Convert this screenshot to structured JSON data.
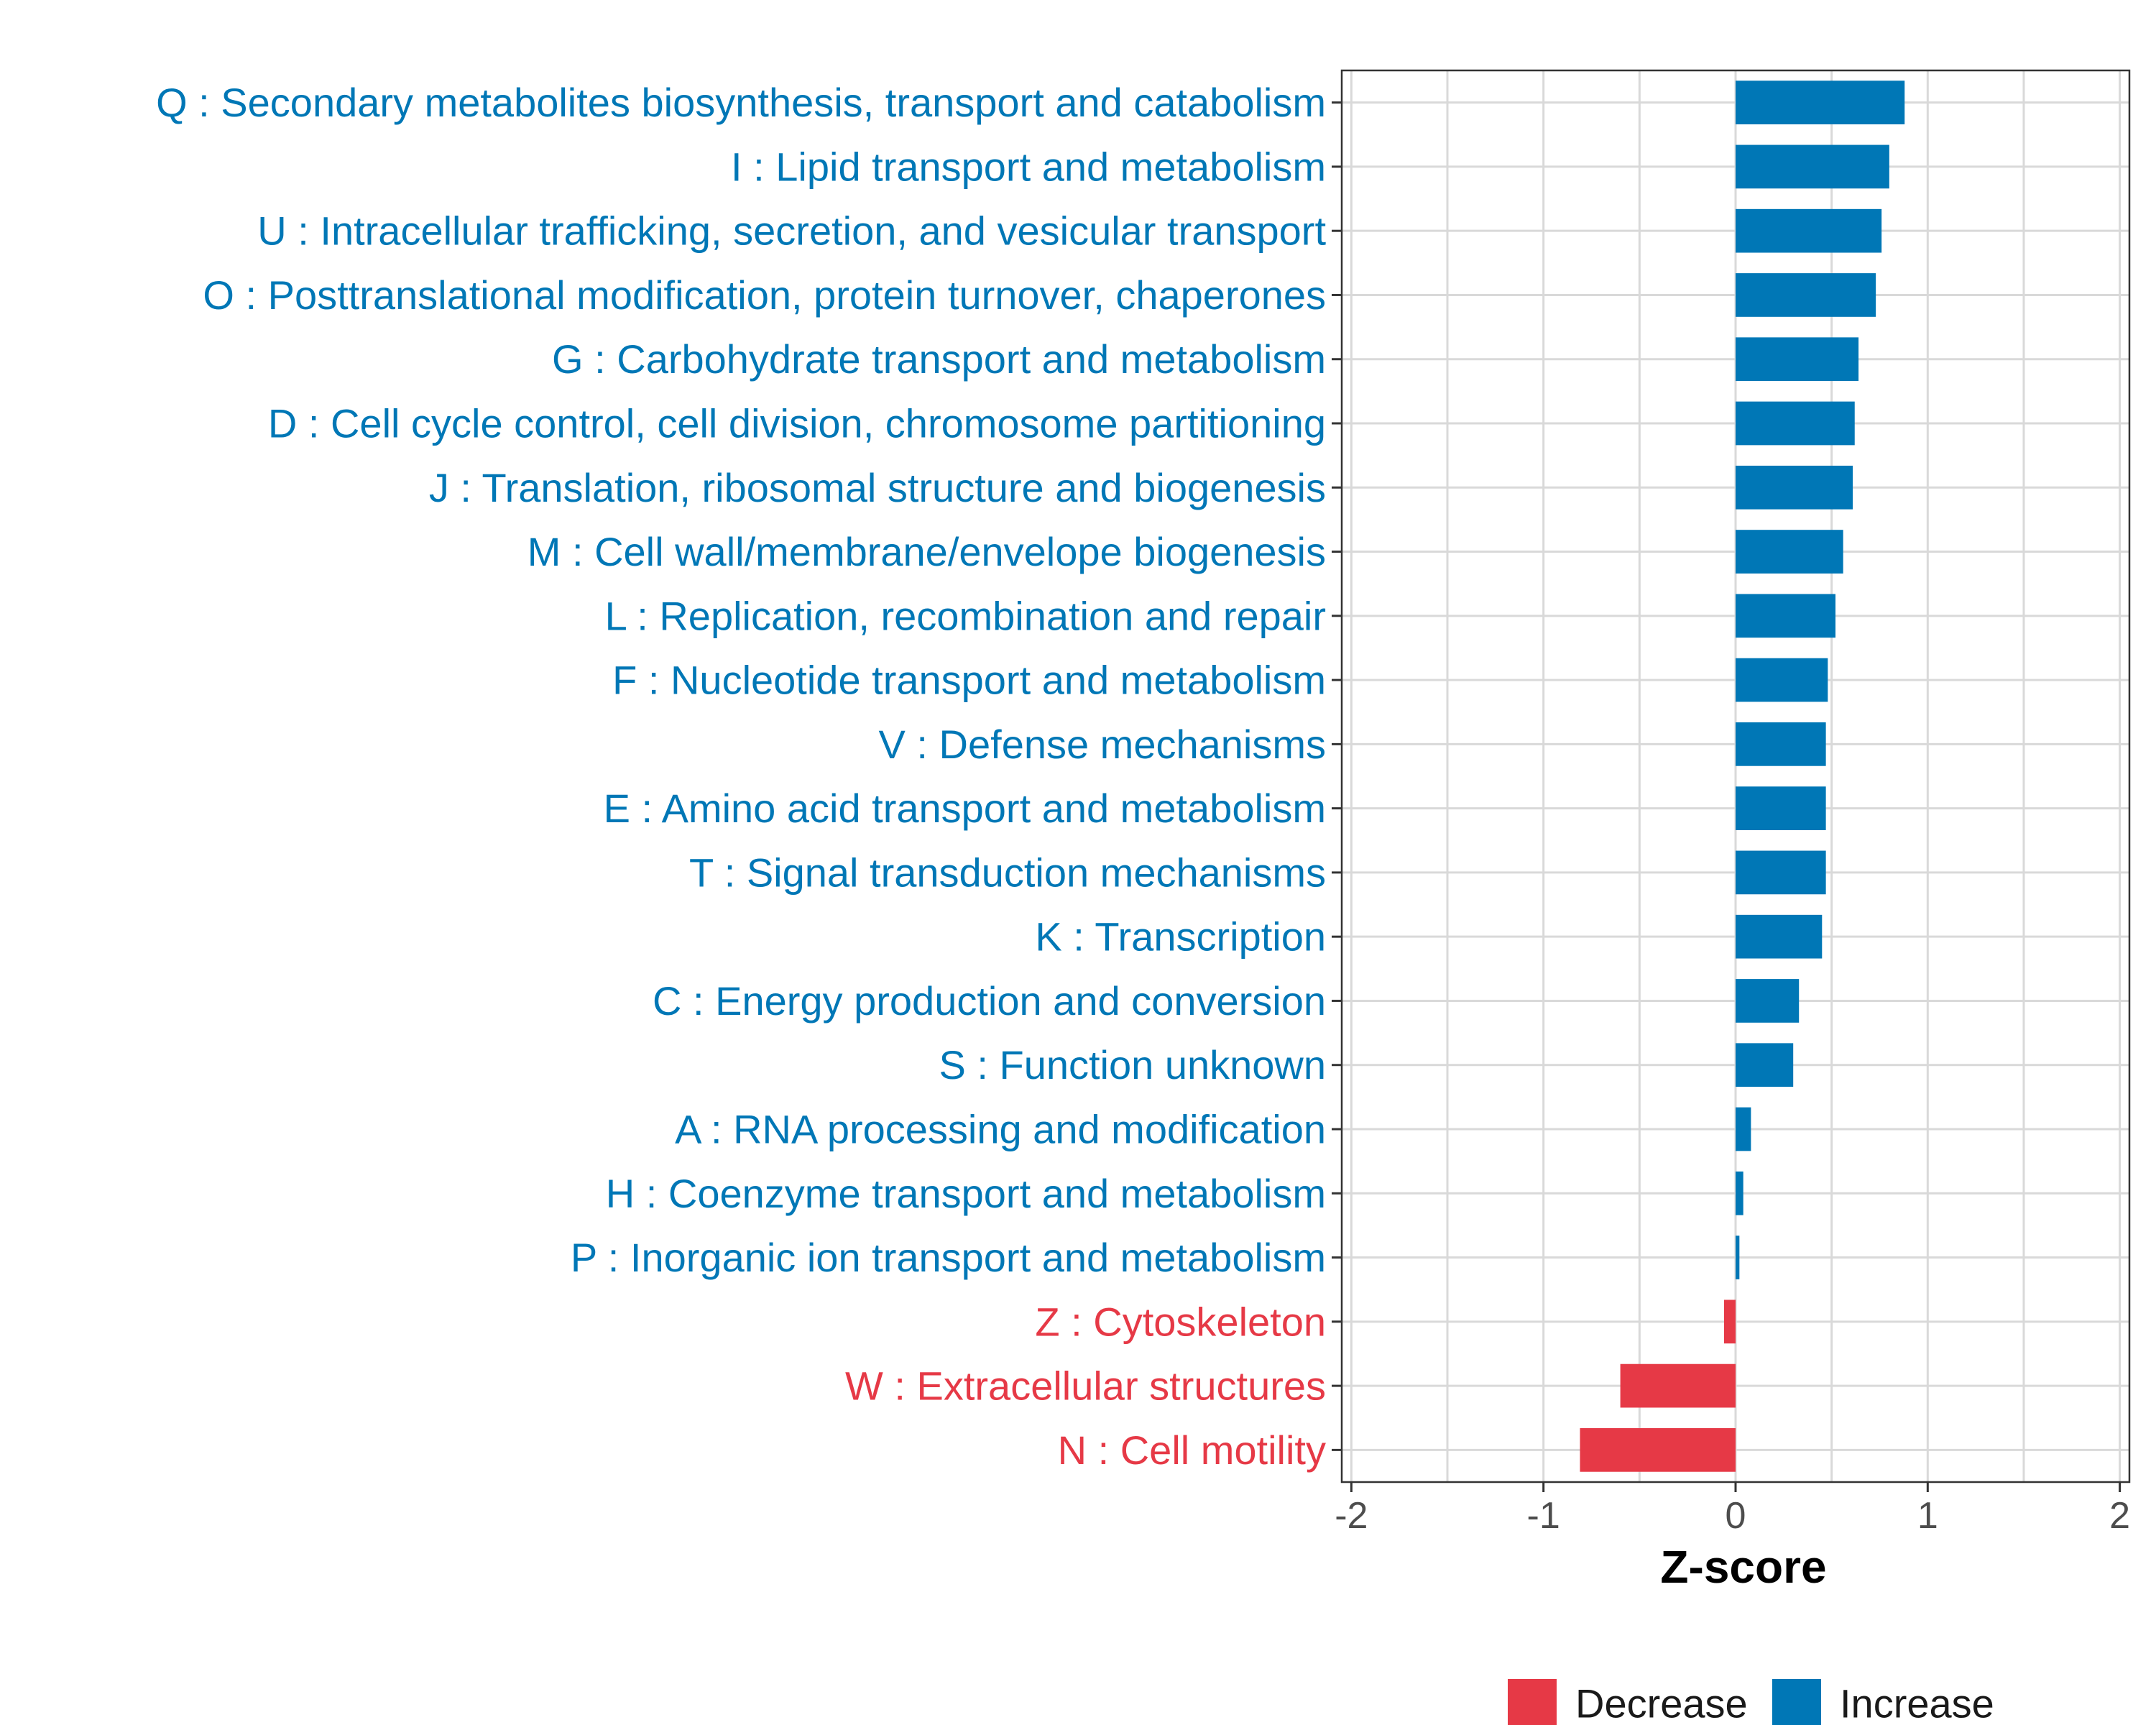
{
  "chart_data": {
    "type": "bar",
    "orientation": "horizontal",
    "title": "",
    "xlabel": "Z-score",
    "ylabel": "",
    "xlim": [
      -2.05,
      2.05
    ],
    "x_ticks": [
      "-2",
      "-1",
      "0",
      "1",
      "2"
    ],
    "x_tick_values": [
      -2,
      -1,
      0,
      1,
      2
    ],
    "grid": true,
    "legend_position": "bottom",
    "legend": [
      {
        "key": "decrease",
        "label": "Decrease",
        "color": "#E63946"
      },
      {
        "key": "increase",
        "label": "Increase",
        "color": "#0077B6"
      }
    ],
    "categories": [
      "Q : Secondary metabolites biosynthesis, transport and catabolism",
      "I : Lipid transport and metabolism",
      "U : Intracellular trafficking, secretion, and vesicular transport",
      "O : Posttranslational modification, protein turnover, chaperones",
      "G : Carbohydrate transport and metabolism",
      "D : Cell cycle control, cell division, chromosome partitioning",
      "J : Translation, ribosomal structure and biogenesis",
      "M : Cell wall/membrane/envelope biogenesis",
      "L : Replication, recombination and repair",
      "F : Nucleotide transport and metabolism",
      "V : Defense mechanisms",
      "E : Amino acid transport and metabolism",
      "T : Signal transduction mechanisms",
      "K : Transcription",
      "C : Energy production and conversion",
      "S : Function unknown",
      "A : RNA processing and modification",
      "H : Coenzyme transport and metabolism",
      "P : Inorganic ion transport and metabolism",
      "Z : Cytoskeleton",
      "W : Extracellular structures",
      "N : Cell motility"
    ],
    "values": [
      0.88,
      0.8,
      0.76,
      0.73,
      0.64,
      0.62,
      0.61,
      0.56,
      0.52,
      0.48,
      0.47,
      0.47,
      0.47,
      0.45,
      0.33,
      0.3,
      0.08,
      0.04,
      0.02,
      -0.06,
      -0.6,
      -0.81
    ],
    "groups": [
      "increase",
      "increase",
      "increase",
      "increase",
      "increase",
      "increase",
      "increase",
      "increase",
      "increase",
      "increase",
      "increase",
      "increase",
      "increase",
      "increase",
      "increase",
      "increase",
      "increase",
      "increase",
      "increase",
      "decrease",
      "decrease",
      "decrease"
    ]
  }
}
